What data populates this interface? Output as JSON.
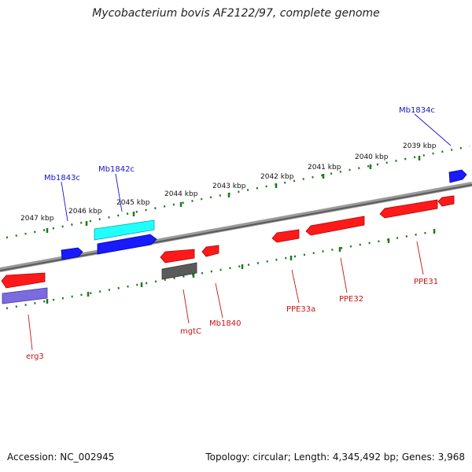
{
  "title": "Mycobacterium bovis AF2122/97, complete genome",
  "footer": {
    "accession": "Accession: NC_002945",
    "summary": "Topology: circular; Length: 4,345,492 bp; Genes: 3,968"
  },
  "colors": {
    "backbone": "#7a7a7a",
    "tick": "#1e7a1e",
    "forward_label": "#1515c8",
    "reverse_label": "#c81414",
    "gene_red": "#ff1a1a",
    "gene_blue": "#1a1aff",
    "gene_cyan": "#22ffff",
    "gene_gray": "#5a5a5a",
    "gene_purple": "#7b6be0"
  },
  "kbp_labels": [
    "2047 kbp",
    "2046 kbp",
    "2045 kbp",
    "2044 kbp",
    "2043 kbp",
    "2042 kbp",
    "2041 kbp",
    "2040 kbp",
    "2039 kbp"
  ],
  "forward_gene_labels": [
    "Mb1843c",
    "Mb1842c",
    "Mb1834c"
  ],
  "reverse_gene_labels": [
    "erg3",
    "mgtC",
    "Mb1840",
    "PPE33a",
    "PPE32",
    "PPE31"
  ]
}
